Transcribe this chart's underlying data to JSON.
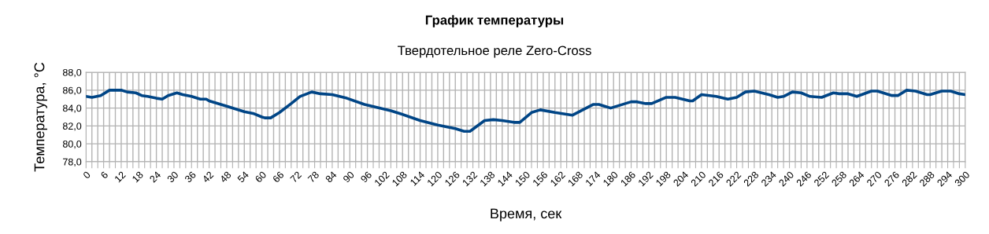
{
  "chart_data": {
    "type": "line",
    "title": "График температуры",
    "subtitle": "Твердотельное реле Zero-Cross",
    "xlabel": "Время, сек",
    "ylabel": "Температура, °C",
    "series": [
      {
        "color": "#004586",
        "x": [
          0,
          2,
          5,
          8,
          12,
          14,
          17,
          19,
          21,
          24,
          26,
          28,
          31,
          33,
          36,
          39,
          41,
          42,
          48,
          54,
          57,
          60,
          61,
          63,
          66,
          70,
          73,
          77,
          80,
          84,
          89,
          95,
          104,
          107,
          114,
          120,
          126,
          129,
          131,
          136,
          139,
          142,
          146,
          148,
          152,
          155,
          160,
          166,
          173,
          175,
          179,
          186,
          188,
          191,
          193,
          198,
          201,
          206,
          207,
          210,
          215,
          219,
          222,
          225,
          228,
          233,
          236,
          238,
          241,
          244,
          247,
          251,
          255,
          257,
          260,
          263,
          268,
          270,
          275,
          277,
          280,
          283,
          287,
          288,
          292,
          295,
          298,
          300
        ],
        "values": [
          85.3,
          85.2,
          85.4,
          86.0,
          86.0,
          85.8,
          85.7,
          85.4,
          85.3,
          85.1,
          85.0,
          85.4,
          85.7,
          85.5,
          85.3,
          85.0,
          85.0,
          84.8,
          84.2,
          83.6,
          83.4,
          83.0,
          82.9,
          82.9,
          83.5,
          84.5,
          85.3,
          85.8,
          85.6,
          85.5,
          85.1,
          84.4,
          83.7,
          83.4,
          82.6,
          82.1,
          81.7,
          81.4,
          81.4,
          82.6,
          82.7,
          82.6,
          82.4,
          82.4,
          83.5,
          83.8,
          83.5,
          83.2,
          84.4,
          84.4,
          84.0,
          84.7,
          84.7,
          84.5,
          84.5,
          85.2,
          85.2,
          84.8,
          84.8,
          85.5,
          85.3,
          85.0,
          85.2,
          85.8,
          85.9,
          85.5,
          85.2,
          85.3,
          85.8,
          85.7,
          85.3,
          85.2,
          85.7,
          85.6,
          85.6,
          85.3,
          85.9,
          85.9,
          85.4,
          85.4,
          86.0,
          85.9,
          85.5,
          85.5,
          85.9,
          85.9,
          85.6,
          85.5
        ]
      }
    ],
    "xlim": [
      0,
      300
    ],
    "xticks": [
      0,
      {
        "value": 2,
        "label": null
      },
      {
        "value": 4,
        "label": null
      },
      6,
      {
        "value": 8,
        "label": null
      },
      {
        "value": 10,
        "label": null
      },
      12,
      {
        "value": 14,
        "label": null
      },
      {
        "value": 16,
        "label": null
      },
      18,
      {
        "value": 20,
        "label": null
      },
      {
        "value": 22,
        "label": null
      },
      24,
      {
        "value": 26,
        "label": null
      },
      {
        "value": 28,
        "label": null
      },
      30,
      {
        "value": 32,
        "label": null
      },
      {
        "value": 34,
        "label": null
      },
      36,
      {
        "value": 38,
        "label": null
      },
      {
        "value": 40,
        "label": null
      },
      42,
      {
        "value": 44,
        "label": null
      },
      {
        "value": 46,
        "label": null
      },
      48,
      {
        "value": 50,
        "label": null
      },
      {
        "value": 52,
        "label": null
      },
      54,
      {
        "value": 56,
        "label": null
      },
      {
        "value": 58,
        "label": null
      },
      60,
      {
        "value": 62,
        "label": null
      },
      {
        "value": 64,
        "label": null
      },
      66,
      {
        "value": 68,
        "label": null
      },
      {
        "value": 70,
        "label": null
      },
      72,
      {
        "value": 74,
        "label": null
      },
      {
        "value": 76,
        "label": null
      },
      78,
      {
        "value": 80,
        "label": null
      },
      {
        "value": 82,
        "label": null
      },
      84,
      {
        "value": 86,
        "label": null
      },
      {
        "value": 88,
        "label": null
      },
      90,
      {
        "value": 92,
        "label": null
      },
      {
        "value": 94,
        "label": null
      },
      96,
      {
        "value": 98,
        "label": null
      },
      {
        "value": 100,
        "label": null
      },
      102,
      {
        "value": 104,
        "label": null
      },
      {
        "value": 106,
        "label": null
      },
      108,
      {
        "value": 110,
        "label": null
      },
      {
        "value": 112,
        "label": null
      },
      114,
      {
        "value": 116,
        "label": null
      },
      {
        "value": 118,
        "label": null
      },
      120,
      {
        "value": 122,
        "label": null
      },
      {
        "value": 124,
        "label": null
      },
      126,
      {
        "value": 128,
        "label": null
      },
      {
        "value": 130,
        "label": null
      },
      132,
      {
        "value": 134,
        "label": null
      },
      {
        "value": 136,
        "label": null
      },
      138,
      {
        "value": 140,
        "label": null
      },
      {
        "value": 142,
        "label": null
      },
      144,
      {
        "value": 146,
        "label": null
      },
      {
        "value": 148,
        "label": null
      },
      150,
      {
        "value": 152,
        "label": null
      },
      {
        "value": 154,
        "label": null
      },
      156,
      {
        "value": 158,
        "label": null
      },
      {
        "value": 160,
        "label": null
      },
      162,
      {
        "value": 164,
        "label": null
      },
      {
        "value": 166,
        "label": null
      },
      168,
      {
        "value": 170,
        "label": null
      },
      {
        "value": 172,
        "label": null
      },
      174,
      {
        "value": 176,
        "label": null
      },
      {
        "value": 178,
        "label": null
      },
      180,
      {
        "value": 182,
        "label": null
      },
      {
        "value": 184,
        "label": null
      },
      186,
      {
        "value": 188,
        "label": null
      },
      {
        "value": 190,
        "label": null
      },
      192,
      {
        "value": 194,
        "label": null
      },
      {
        "value": 196,
        "label": null
      },
      198,
      {
        "value": 200,
        "label": null
      },
      {
        "value": 202,
        "label": null
      },
      204,
      {
        "value": 206,
        "label": null
      },
      {
        "value": 208,
        "label": null
      },
      210,
      {
        "value": 212,
        "label": null
      },
      {
        "value": 214,
        "label": null
      },
      216,
      {
        "value": 218,
        "label": null
      },
      {
        "value": 220,
        "label": null
      },
      222,
      {
        "value": 224,
        "label": null
      },
      {
        "value": 226,
        "label": null
      },
      228,
      {
        "value": 230,
        "label": null
      },
      {
        "value": 232,
        "label": null
      },
      234,
      {
        "value": 236,
        "label": null
      },
      {
        "value": 238,
        "label": null
      },
      240,
      {
        "value": 242,
        "label": null
      },
      {
        "value": 244,
        "label": null
      },
      246,
      {
        "value": 248,
        "label": null
      },
      {
        "value": 250,
        "label": null
      },
      252,
      {
        "value": 254,
        "label": null
      },
      {
        "value": 256,
        "label": null
      },
      258,
      {
        "value": 260,
        "label": null
      },
      {
        "value": 262,
        "label": null
      },
      264,
      {
        "value": 266,
        "label": null
      },
      {
        "value": 268,
        "label": null
      },
      270,
      {
        "value": 272,
        "label": null
      },
      {
        "value": 274,
        "label": null
      },
      276,
      {
        "value": 278,
        "label": null
      },
      {
        "value": 280,
        "label": null
      },
      282,
      {
        "value": 284,
        "label": null
      },
      {
        "value": 286,
        "label": null
      },
      288,
      {
        "value": 290,
        "label": null
      },
      {
        "value": 292,
        "label": null
      },
      294,
      {
        "value": 296,
        "label": null
      },
      {
        "value": 298,
        "label": null
      },
      300
    ],
    "ylim": [
      78,
      88
    ],
    "yticks": [
      {
        "value": 78,
        "label": "78,0"
      },
      {
        "value": 80,
        "label": "80,0"
      },
      {
        "value": 82,
        "label": "82,0"
      },
      {
        "value": 84,
        "label": "84,0"
      },
      {
        "value": 86,
        "label": "86,0"
      },
      {
        "value": 88,
        "label": "88,0"
      }
    ],
    "grid": true,
    "marker": "none",
    "line_style": "solid"
  }
}
